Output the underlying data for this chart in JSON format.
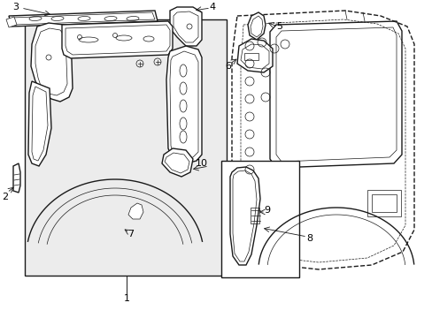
{
  "bg_color": "#ffffff",
  "line_color": "#1a1a1a",
  "fill_color": "#ececec",
  "fig_width": 4.89,
  "fig_height": 3.6,
  "dpi": 100
}
